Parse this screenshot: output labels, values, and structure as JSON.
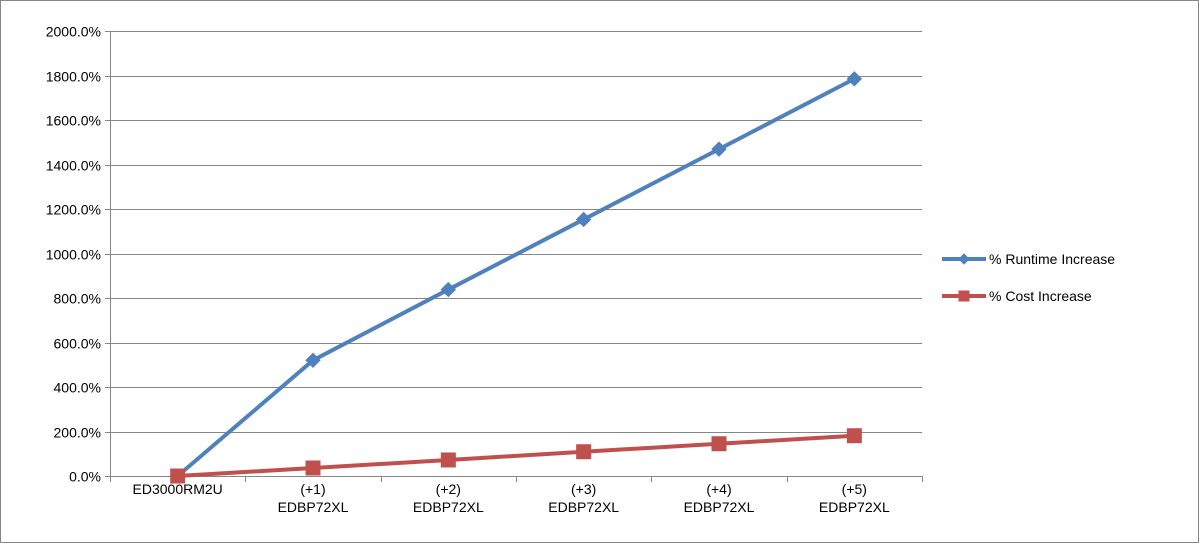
{
  "chart_data": {
    "type": "line",
    "categories": [
      [
        "ED3000RM2U"
      ],
      [
        "(+1)",
        "EDBP72XL"
      ],
      [
        "(+2)",
        "EDBP72XL"
      ],
      [
        "(+3)",
        "EDBP72XL"
      ],
      [
        "(+4)",
        "EDBP72XL"
      ],
      [
        "(+5)",
        "EDBP72XL"
      ]
    ],
    "series": [
      {
        "name": "% Runtime Increase",
        "color": "#4F81BD",
        "marker": "diamond",
        "values": [
          0.0,
          520.0,
          838.0,
          1153.0,
          1469.0,
          1785.0
        ]
      },
      {
        "name": "% Cost Increase",
        "color": "#C0504D",
        "marker": "square",
        "values": [
          0.0,
          36.0,
          72.0,
          109.0,
          145.0,
          181.0
        ]
      }
    ],
    "ylim": [
      0,
      2000
    ],
    "ytick_step": 200,
    "ytick_format": "0.0%",
    "grid": true,
    "legend_position": "right",
    "title": "",
    "xlabel": "",
    "ylabel": ""
  }
}
